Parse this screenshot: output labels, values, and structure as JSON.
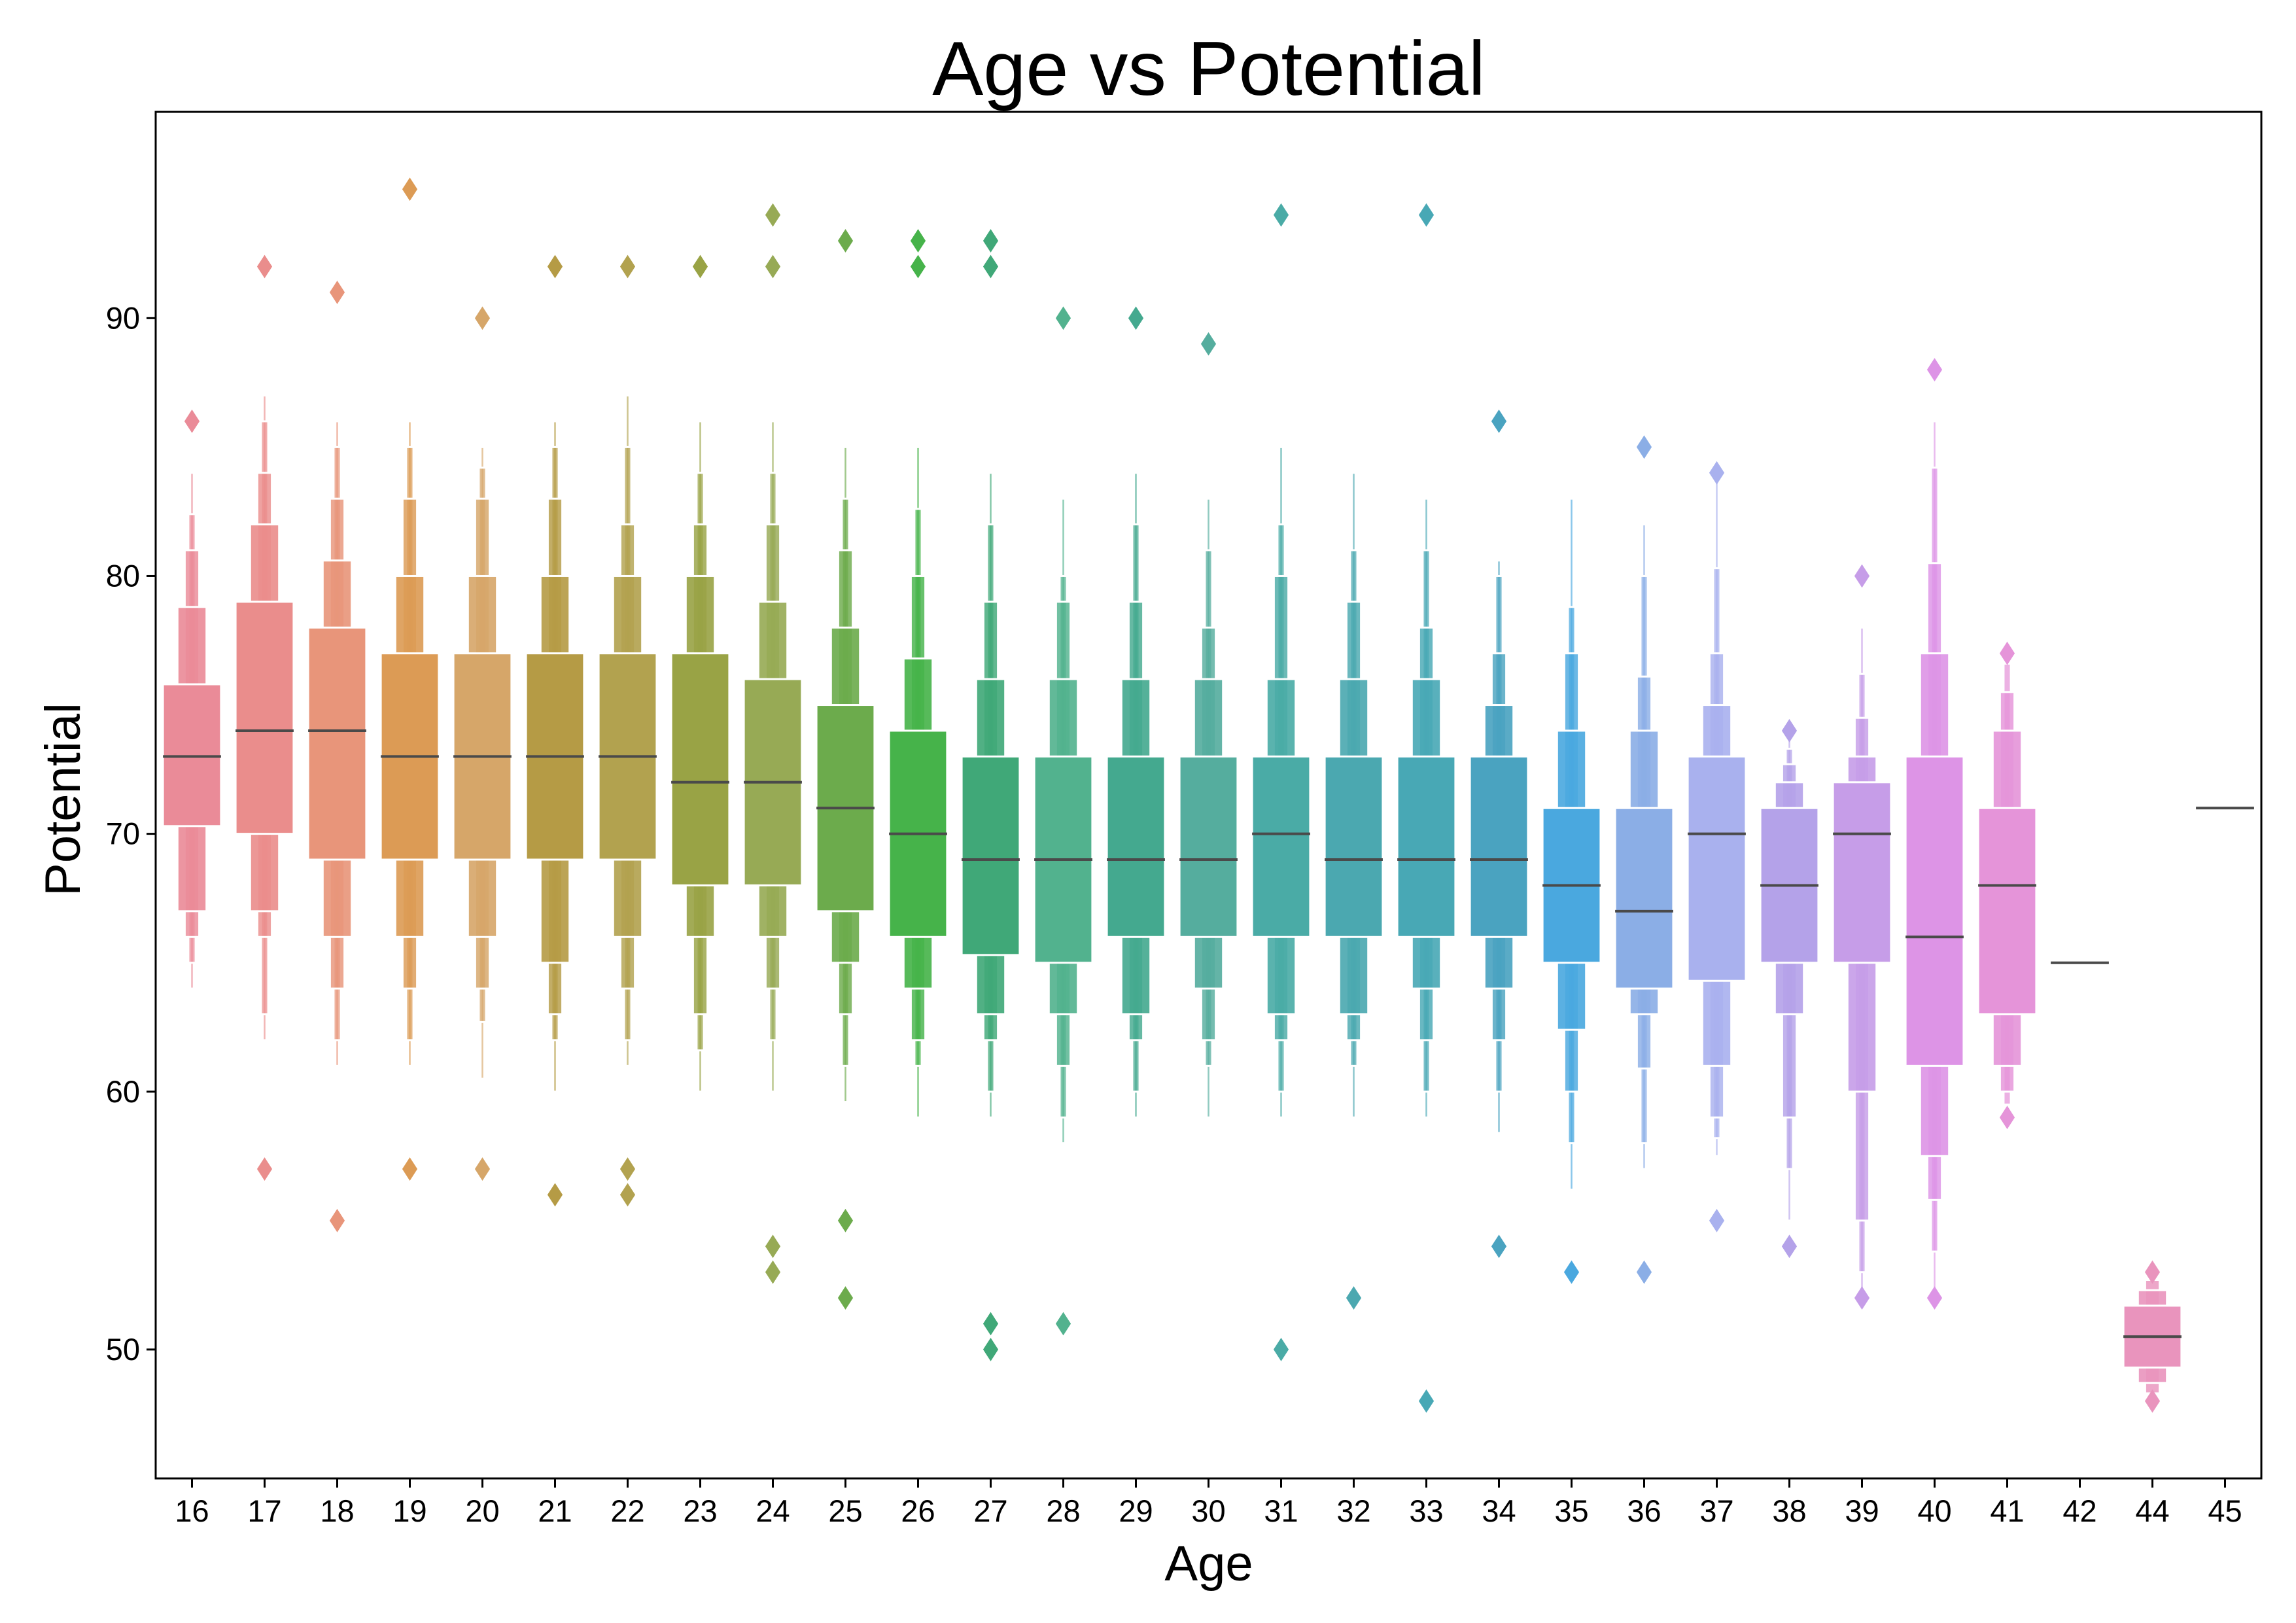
{
  "chart_data": {
    "type": "boxen",
    "title": "Age vs  Potential",
    "xlabel": "Age",
    "ylabel": "Potential",
    "ylim": [
      45,
      98
    ],
    "yticks": [
      50,
      60,
      70,
      80,
      90
    ],
    "grid": false,
    "legend": "none",
    "categories": [
      "16",
      "17",
      "18",
      "19",
      "20",
      "21",
      "22",
      "23",
      "24",
      "25",
      "26",
      "27",
      "28",
      "29",
      "30",
      "31",
      "32",
      "33",
      "34",
      "35",
      "36",
      "37",
      "38",
      "39",
      "40",
      "41",
      "42",
      "44",
      "45"
    ],
    "series": [
      {
        "age": "16",
        "color": "#ea8b98",
        "median": 73,
        "levels": [
          [
            70.3,
            75.8
          ],
          [
            67,
            78.8
          ],
          [
            66,
            81
          ],
          [
            65,
            82.4
          ],
          [
            64,
            84
          ]
        ],
        "outliers": [
          86
        ]
      },
      {
        "age": "17",
        "color": "#ea8d8c",
        "median": 74,
        "levels": [
          [
            70,
            79
          ],
          [
            67,
            82
          ],
          [
            66,
            84
          ],
          [
            63,
            86
          ],
          [
            62,
            87
          ]
        ],
        "outliers": [
          92,
          57
        ]
      },
      {
        "age": "18",
        "color": "#e8957a",
        "median": 74,
        "levels": [
          [
            69,
            78
          ],
          [
            66,
            80.6
          ],
          [
            64,
            83
          ],
          [
            62,
            85
          ],
          [
            61,
            86
          ]
        ],
        "outliers": [
          91,
          55
        ]
      },
      {
        "age": "19",
        "color": "#dc9b55",
        "median": 73,
        "levels": [
          [
            69,
            77
          ],
          [
            66,
            80
          ],
          [
            64,
            83
          ],
          [
            62,
            85
          ],
          [
            61,
            86
          ]
        ],
        "outliers": [
          95,
          57
        ]
      },
      {
        "age": "20",
        "color": "#d6a669",
        "median": 73,
        "levels": [
          [
            69,
            77
          ],
          [
            66,
            80
          ],
          [
            64,
            83
          ],
          [
            62.7,
            84.2
          ],
          [
            60.5,
            85
          ]
        ],
        "outliers": [
          90,
          57
        ]
      },
      {
        "age": "21",
        "color": "#b59b45",
        "median": 73,
        "levels": [
          [
            69,
            77
          ],
          [
            65,
            80
          ],
          [
            63,
            83
          ],
          [
            62,
            85
          ],
          [
            60,
            86
          ]
        ],
        "outliers": [
          92,
          56
        ]
      },
      {
        "age": "22",
        "color": "#b2a24f",
        "median": 73,
        "levels": [
          [
            69,
            77
          ],
          [
            66,
            80
          ],
          [
            64,
            82
          ],
          [
            62,
            85
          ],
          [
            61,
            87
          ]
        ],
        "outliers": [
          92,
          57,
          56
        ]
      },
      {
        "age": "23",
        "color": "#99a345",
        "median": 72,
        "levels": [
          [
            68,
            77
          ],
          [
            66,
            80
          ],
          [
            63,
            82
          ],
          [
            61.6,
            84
          ],
          [
            60,
            86
          ]
        ],
        "outliers": [
          92
        ]
      },
      {
        "age": "24",
        "color": "#97aa55",
        "median": 72,
        "levels": [
          [
            68,
            76
          ],
          [
            66,
            79
          ],
          [
            64,
            82
          ],
          [
            62,
            84
          ],
          [
            60,
            86
          ]
        ],
        "outliers": [
          94,
          92,
          54,
          53
        ]
      },
      {
        "age": "25",
        "color": "#6cab4c",
        "median": 71,
        "levels": [
          [
            67,
            75
          ],
          [
            65,
            78
          ],
          [
            63,
            81
          ],
          [
            61,
            83
          ],
          [
            59.6,
            85
          ]
        ],
        "outliers": [
          93,
          55,
          52
        ]
      },
      {
        "age": "26",
        "color": "#46b34a",
        "median": 70,
        "levels": [
          [
            66,
            74
          ],
          [
            64,
            76.8
          ],
          [
            62,
            80
          ],
          [
            61,
            82.6
          ],
          [
            59,
            85
          ]
        ],
        "outliers": [
          93,
          92
        ]
      },
      {
        "age": "27",
        "color": "#40a878",
        "median": 69,
        "levels": [
          [
            65.3,
            73
          ],
          [
            63,
            76
          ],
          [
            62,
            79
          ],
          [
            60,
            82
          ],
          [
            59,
            84
          ]
        ],
        "outliers": [
          93,
          92,
          51,
          50
        ]
      },
      {
        "age": "28",
        "color": "#52b28e",
        "median": 69,
        "levels": [
          [
            65,
            73
          ],
          [
            63,
            76
          ],
          [
            61,
            79
          ],
          [
            59,
            80
          ],
          [
            58,
            83
          ]
        ],
        "outliers": [
          90,
          51
        ]
      },
      {
        "age": "29",
        "color": "#44a98f",
        "median": 69,
        "levels": [
          [
            66,
            73
          ],
          [
            63,
            76
          ],
          [
            62,
            79
          ],
          [
            60,
            82
          ],
          [
            59,
            84
          ]
        ],
        "outliers": [
          90
        ]
      },
      {
        "age": "30",
        "color": "#55ad9e",
        "median": 69,
        "levels": [
          [
            66,
            73
          ],
          [
            64,
            76
          ],
          [
            62,
            78
          ],
          [
            61,
            81
          ],
          [
            59,
            83
          ]
        ],
        "outliers": [
          89
        ]
      },
      {
        "age": "31",
        "color": "#4aaba6",
        "median": 70,
        "levels": [
          [
            66,
            73
          ],
          [
            63,
            76
          ],
          [
            62,
            80
          ],
          [
            60,
            82
          ],
          [
            59,
            85
          ]
        ],
        "outliers": [
          94,
          50
        ]
      },
      {
        "age": "32",
        "color": "#4ba8b0",
        "median": 69,
        "levels": [
          [
            66,
            73
          ],
          [
            63,
            76
          ],
          [
            62,
            79
          ],
          [
            61,
            81
          ],
          [
            59,
            84
          ]
        ],
        "outliers": [
          52
        ]
      },
      {
        "age": "33",
        "color": "#48a8b5",
        "median": 69,
        "levels": [
          [
            66,
            73
          ],
          [
            64,
            76
          ],
          [
            62,
            78
          ],
          [
            60,
            81
          ],
          [
            59,
            83
          ]
        ],
        "outliers": [
          94,
          48
        ]
      },
      {
        "age": "34",
        "color": "#4aa3c0",
        "median": 69,
        "levels": [
          [
            66,
            73
          ],
          [
            64,
            75
          ],
          [
            62,
            77
          ],
          [
            60,
            80
          ],
          [
            58.4,
            80.6
          ]
        ],
        "outliers": [
          86,
          54
        ]
      },
      {
        "age": "35",
        "color": "#4aa8df",
        "median": 68,
        "levels": [
          [
            65,
            71
          ],
          [
            62.4,
            74
          ],
          [
            60,
            77
          ],
          [
            58,
            78.8
          ],
          [
            56.2,
            83
          ]
        ],
        "outliers": [
          53
        ]
      },
      {
        "age": "36",
        "color": "#8baee6",
        "median": 67,
        "levels": [
          [
            64,
            71
          ],
          [
            63,
            74
          ],
          [
            60.9,
            76.1
          ],
          [
            58,
            80
          ],
          [
            57,
            82
          ]
        ],
        "outliers": [
          85,
          53
        ]
      },
      {
        "age": "37",
        "color": "#a9b1ee",
        "median": 70,
        "levels": [
          [
            64.3,
            73
          ],
          [
            61,
            75
          ],
          [
            59,
            77
          ],
          [
            58.2,
            80.3
          ],
          [
            57.5,
            84
          ]
        ],
        "outliers": [
          84,
          55
        ]
      },
      {
        "age": "38",
        "color": "#b4a2e9",
        "median": 68,
        "levels": [
          [
            65,
            71
          ],
          [
            63,
            72
          ],
          [
            59,
            72.7
          ],
          [
            57,
            73.3
          ],
          [
            55,
            74
          ]
        ],
        "outliers": [
          74,
          54
        ]
      },
      {
        "age": "39",
        "color": "#c69de8",
        "median": 70,
        "levels": [
          [
            65,
            72
          ],
          [
            60,
            73
          ],
          [
            55,
            74.5
          ],
          [
            53,
            76.2
          ],
          [
            52,
            78
          ]
        ],
        "outliers": [
          80,
          52
        ]
      },
      {
        "age": "40",
        "color": "#dd94e6",
        "median": 66,
        "levels": [
          [
            61,
            73
          ],
          [
            57.5,
            77
          ],
          [
            55.8,
            80.5
          ],
          [
            53.8,
            84.2
          ],
          [
            52,
            86
          ]
        ],
        "outliers": [
          88,
          52
        ]
      },
      {
        "age": "41",
        "color": "#e594d9",
        "median": 68,
        "levels": [
          [
            63,
            71
          ],
          [
            61,
            74
          ],
          [
            60,
            75.5
          ],
          [
            59.5,
            76.6
          ]
        ],
        "outliers": [
          77,
          59
        ]
      },
      {
        "age": "42",
        "color": "#e997c6",
        "median": 65,
        "levels": [],
        "outliers": []
      },
      {
        "age": "44",
        "color": "#e994bd",
        "median": 50.5,
        "levels": [
          [
            49.3,
            51.7
          ],
          [
            48.7,
            52.3
          ],
          [
            48.3,
            52.7
          ]
        ],
        "outliers": [
          53,
          48
        ]
      },
      {
        "age": "45",
        "color": "#e997c0",
        "median": 71,
        "levels": [],
        "outliers": []
      }
    ]
  }
}
